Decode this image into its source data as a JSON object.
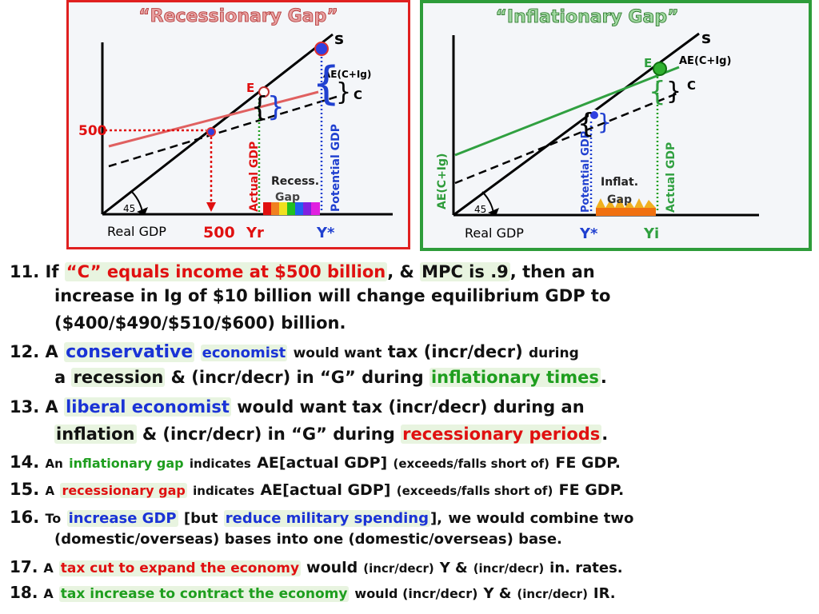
{
  "left_chart": {
    "title": "“Recessionary Gap”",
    "curve_s": "s",
    "curve_ae": "AE(C+Ig)",
    "curve_c": "C",
    "point_e": "E",
    "angle": "45",
    "label_500_y": "500",
    "label_500_x": "500",
    "x_axis": "Real GDP",
    "yr": "Yr",
    "ystar": "Y*",
    "actual_gdp": "Actual GDP",
    "potential_gdp": "Potential GDP",
    "gap_line1": "Recess.",
    "gap_line2": "Gap"
  },
  "right_chart": {
    "title": "“Inflationary Gap”",
    "curve_s": "s",
    "curve_ae": "AE(C+Ig)",
    "curve_c": "C",
    "point_e": "E",
    "angle": "45",
    "y_axis": "AE(C+Ig)",
    "x_axis": "Real GDP",
    "ystar": "Y*",
    "yi": "Yi",
    "potential_gdp": "Potential GDP",
    "actual_gdp": "Actual GDP",
    "gap_line1": "Inflat.",
    "gap_line2": "Gap"
  },
  "questions": {
    "q11": {
      "num": "11.",
      "a": "If",
      "b": "“C” equals income at $500 billion",
      "c": ",",
      "d": "&",
      "e": "MPC is .9",
      "f": ",  then  an",
      "l2": "increase in Ig of $10 billion will change equilibrium GDP to",
      "l3": "($400/$490/$510/$600) billion."
    },
    "q12": {
      "num": "12.",
      "a": "A",
      "b": "conservative",
      "c": "economist",
      "d": "would want",
      "e": "tax (incr/decr)",
      "f": "during",
      "g": "a",
      "h": "recession",
      "i": "& (incr/decr) in “G” during",
      "j": "inflationary times",
      "k": "."
    },
    "q13": {
      "num": "13.",
      "a": "A",
      "b": "liberal economist",
      "c": "would want tax (incr/decr) during an",
      "d": "inflation",
      "e": "& (incr/decr) in “G” during",
      "f": "recessionary periods",
      "g": "."
    },
    "q14": {
      "num": "14.",
      "a": "An",
      "b": "inflationary gap",
      "c": "indicates",
      "d": "AE[actual GDP]",
      "e": "(exceeds/falls short of)",
      "f": "FE GDP."
    },
    "q15": {
      "num": "15.",
      "a": "A",
      "b": "recessionary gap",
      "c": "indicates",
      "d": "AE[actual GDP]",
      "e": "(exceeds/falls short of)",
      "f": "FE GDP."
    },
    "q16": {
      "num": "16.",
      "a": "To",
      "b": "increase GDP",
      "c": "[but",
      "d": "reduce military spending",
      "e": "],",
      "f": "we would combine two",
      "l2": "(domestic/overseas) bases into one (domestic/overseas) base."
    },
    "q17": {
      "num": "17.",
      "a": "A",
      "b": "tax cut to expand the economy",
      "c": "would",
      "d": "(incr/decr)",
      "e": "Y &",
      "f": "(incr/decr)",
      "g": "in. rates."
    },
    "q18": {
      "num": "18.",
      "a": "A",
      "b": "tax increase to contract the economy",
      "c": "would (incr/decr)",
      "d": "Y &",
      "e": "(incr/decr)",
      "f": "IR."
    }
  },
  "colors": {
    "red": "#e01010",
    "blue": "#1a33d6",
    "green": "#1e9e1e",
    "left_border": "#e02020",
    "right_border": "#2e9c3a"
  }
}
